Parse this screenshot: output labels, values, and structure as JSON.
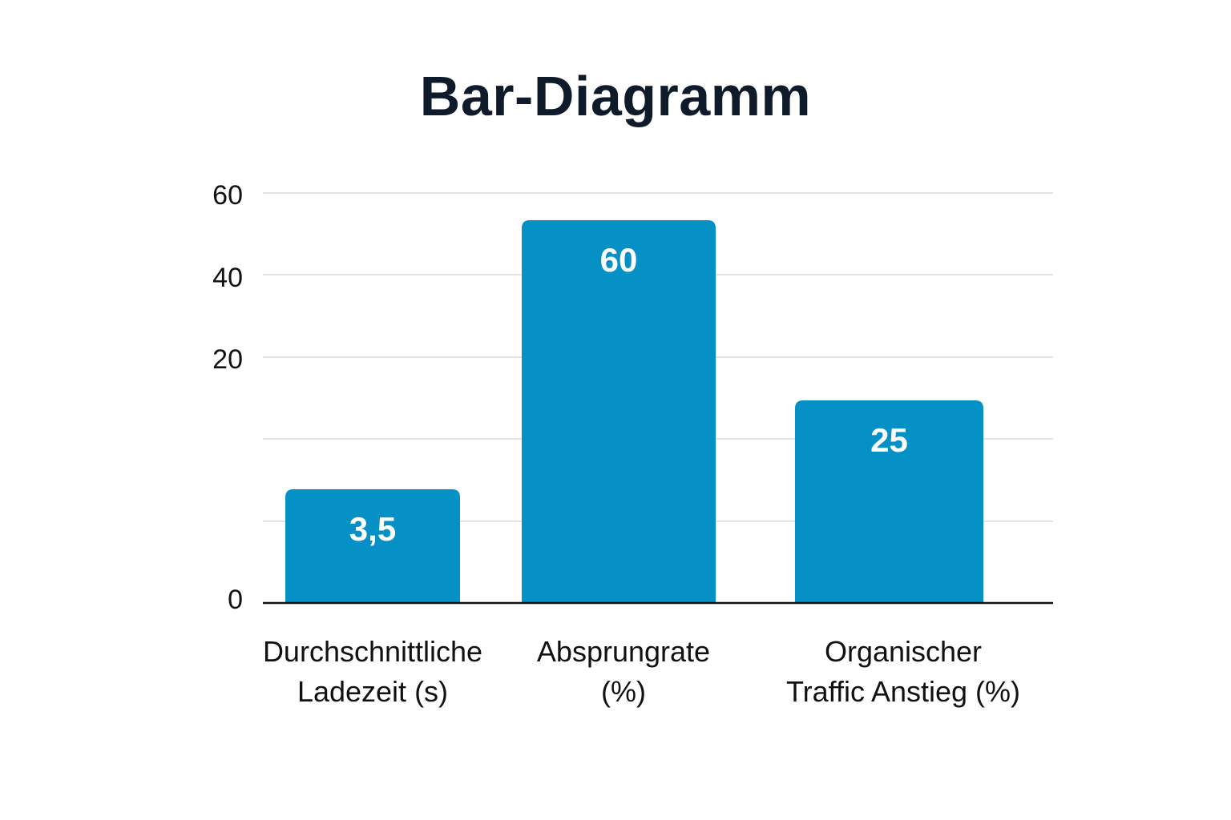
{
  "chart_data": {
    "type": "bar",
    "title": "Bar-Diagramm",
    "categories": [
      [
        "Durchschnittliche",
        "Ladezeit (s)"
      ],
      [
        "Absprungrate",
        "(%)"
      ],
      [
        "Organischer",
        "Traffic Anstieg (%)"
      ]
    ],
    "values": [
      3.5,
      60,
      25
    ],
    "value_labels": [
      "3,5",
      "60",
      "25"
    ],
    "y_tick_labels": [
      "0",
      "",
      "20",
      "40",
      "60"
    ],
    "grid": true,
    "bar_color": "#0590c6",
    "xlabel": "",
    "ylabel": ""
  }
}
